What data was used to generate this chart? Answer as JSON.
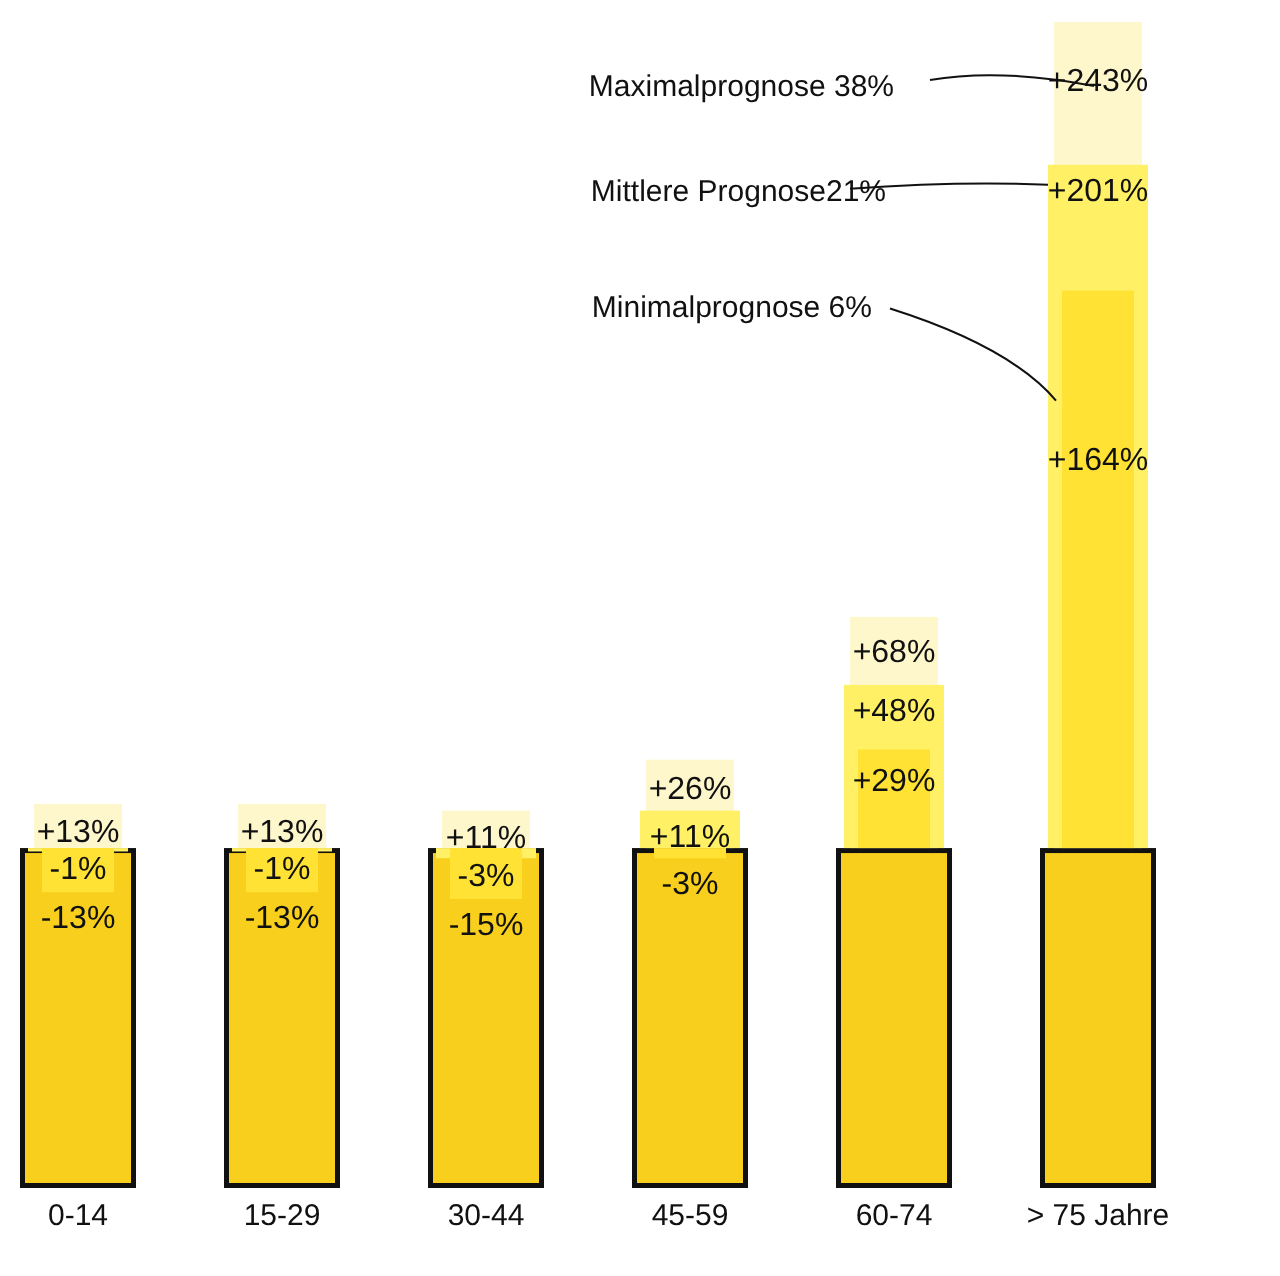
{
  "chart_data": {
    "type": "bar",
    "categories": [
      "0-14",
      "15-29",
      "30-44",
      "45-59",
      "60-74",
      "> 75 Jahre"
    ],
    "tick_labels": "x",
    "series": [
      {
        "color": "#f7cf1c",
        "values": [
          -100,
          -100,
          -100,
          -100,
          -100,
          -100
        ]
      },
      {
        "name": "Maximalprognose 38%",
        "color": "#fff7cc",
        "values": [
          13,
          13,
          11,
          26,
          68,
          243
        ],
        "value_labels": [
          "+13%",
          "+13%",
          "+11%",
          "+26%",
          "+68%",
          "+243%"
        ]
      },
      {
        "name": "Mittlere Prognose21%",
        "color": "#fff066",
        "values": [
          -1,
          -1,
          -3,
          11,
          48,
          201
        ],
        "value_labels": [
          "-1%",
          "-1%",
          "-3%",
          "+11%",
          "+48%",
          "+201%"
        ]
      },
      {
        "name": "Minimalprognose 6%",
        "color": "#ffe234",
        "values": [
          -13,
          -13,
          -15,
          -3,
          29,
          164
        ],
        "value_labels": [
          "-13%",
          "-13%",
          "-15%",
          "-3%",
          "+29%",
          "+164%"
        ]
      }
    ]
  }
}
